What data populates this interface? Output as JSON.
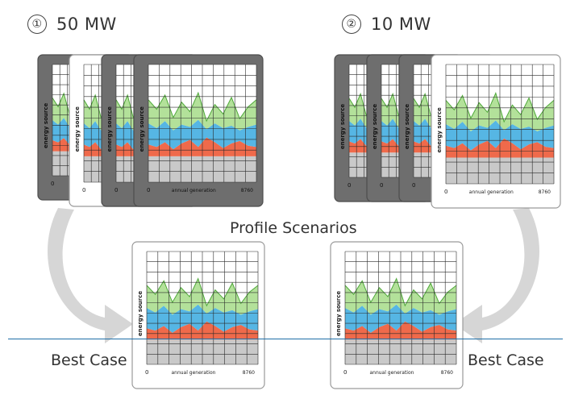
{
  "scenarios": [
    {
      "number": "①",
      "label": "50 MW"
    },
    {
      "number": "②",
      "label": "10 MW"
    }
  ],
  "center_label": "Profile Scenarios",
  "best_case_label": "Best Case",
  "card": {
    "y_axis_label": "energy source",
    "x_axis_label": "annual generation",
    "x_min_label": "0",
    "x_max_label": "8760"
  },
  "colors": {
    "grey_band": "#c9c9c9",
    "red_band": "#ef6a4b",
    "blue_band": "#56b6e4",
    "green_band": "#b3e19a",
    "green_line": "#4fa83a",
    "grid_line": "#2b2b2b",
    "dark_card": "#6e6e6e",
    "light_card": "#ffffff",
    "arrow": "#d6d6d6",
    "divider": "#1e6fa8"
  }
}
